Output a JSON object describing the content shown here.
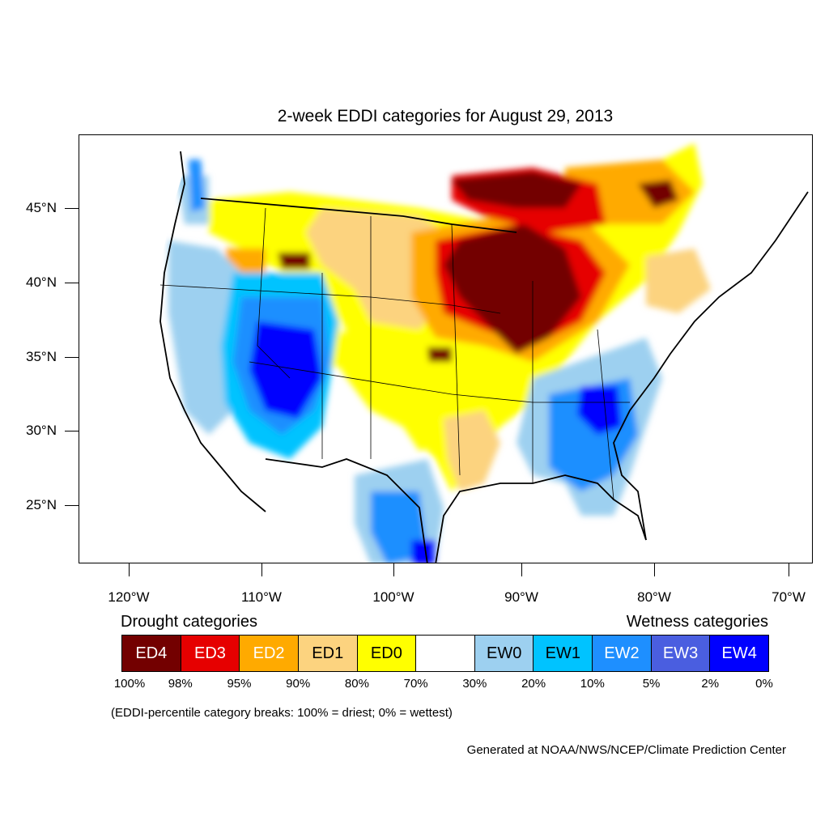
{
  "title": "2-week EDDI categories for August 29, 2013",
  "lat_labels": [
    "45°N",
    "40°N",
    "35°N",
    "30°N",
    "25°N"
  ],
  "lon_labels": [
    "120°W",
    "110°W",
    "100°W",
    "90°W",
    "80°W",
    "70°W"
  ],
  "legend": {
    "drought_heading": "Drought categories",
    "wetness_heading": "Wetness categories",
    "categories": [
      {
        "label": "ED4",
        "color": "#730000",
        "text_color": "#ffffff"
      },
      {
        "label": "ED3",
        "color": "#e60000",
        "text_color": "#ffffff"
      },
      {
        "label": "ED2",
        "color": "#ffaa00",
        "text_color": "#ffffff"
      },
      {
        "label": "ED1",
        "color": "#fcd37f",
        "text_color": "#000000"
      },
      {
        "label": "ED0",
        "color": "#ffff00",
        "text_color": "#000000"
      },
      {
        "label": "",
        "color": "#ffffff",
        "text_color": "#000000"
      },
      {
        "label": "EW0",
        "color": "#9dd0f0",
        "text_color": "#000000"
      },
      {
        "label": "EW1",
        "color": "#00c3ff",
        "text_color": "#000000"
      },
      {
        "label": "EW2",
        "color": "#1e8fff",
        "text_color": "#ffffff"
      },
      {
        "label": "EW3",
        "color": "#4a5ee0",
        "text_color": "#ffffff"
      },
      {
        "label": "EW4",
        "color": "#0000ff",
        "text_color": "#ffffff"
      }
    ],
    "breaks": [
      "100%",
      "98%",
      "95%",
      "90%",
      "80%",
      "70%",
      "30%",
      "20%",
      "10%",
      "5%",
      "2%",
      "0%"
    ]
  },
  "note": "(EDDI-percentile category breaks: 100% = driest; 0% = wettest)",
  "credit": "Generated at NOAA/NWS/NCEP/Climate Prediction Center"
}
